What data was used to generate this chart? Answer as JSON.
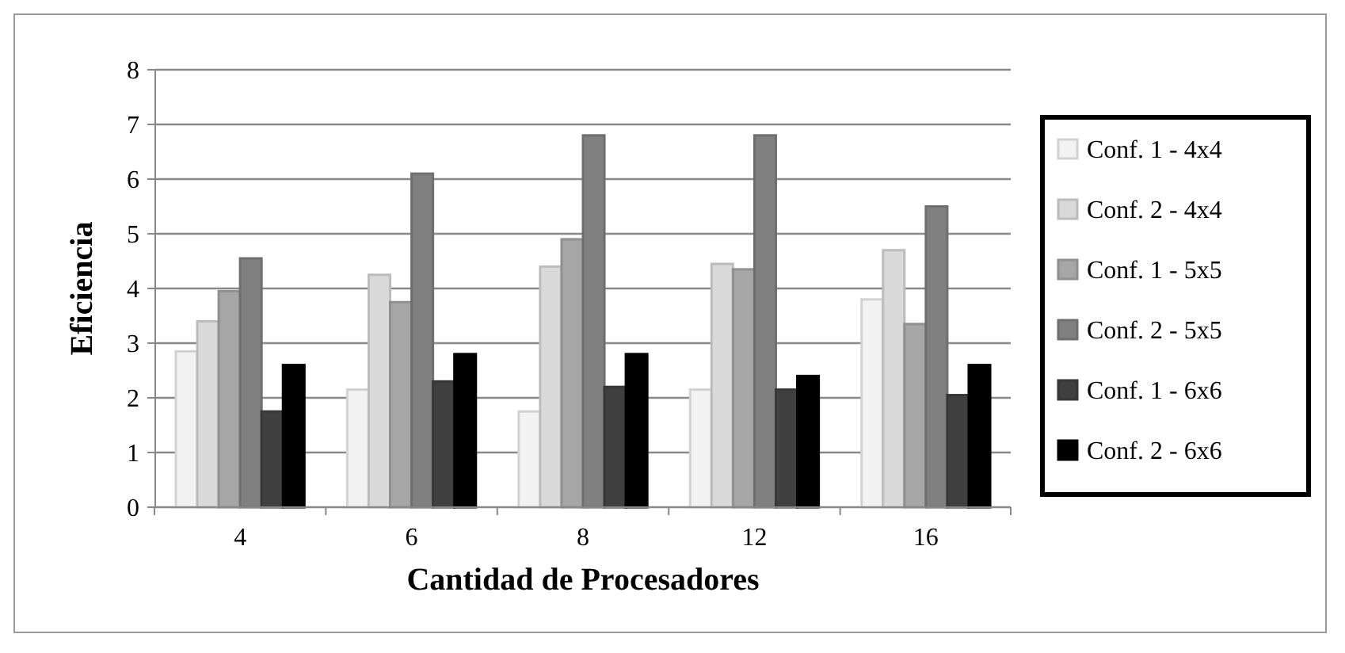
{
  "chart_data": {
    "type": "bar",
    "xlabel": "Cantidad de Procesadores",
    "ylabel": "Eficiencia",
    "categories": [
      "4",
      "6",
      "8",
      "12",
      "16"
    ],
    "series": [
      {
        "name": "Conf. 1 - 4x4",
        "color": "#f2f2f2",
        "values": [
          2.85,
          2.15,
          1.75,
          2.15,
          3.8
        ]
      },
      {
        "name": "Conf. 2 - 4x4",
        "color": "#d9d9d9",
        "values": [
          3.4,
          4.25,
          4.4,
          4.45,
          4.7
        ]
      },
      {
        "name": "Conf. 1 - 5x5",
        "color": "#a6a6a6",
        "values": [
          3.95,
          3.75,
          4.9,
          4.35,
          3.35
        ]
      },
      {
        "name": "Conf. 2 - 5x5",
        "color": "#808080",
        "values": [
          4.55,
          6.1,
          6.8,
          6.8,
          5.5
        ]
      },
      {
        "name": "Conf. 1 - 6x6",
        "color": "#404040",
        "values": [
          1.75,
          2.3,
          2.2,
          2.15,
          2.05
        ]
      },
      {
        "name": "Conf. 2 - 6x6",
        "color": "#000000",
        "values": [
          2.6,
          2.8,
          2.8,
          2.4,
          2.6
        ]
      }
    ],
    "ylim": [
      0,
      8
    ],
    "yticks": [
      0,
      1,
      2,
      3,
      4,
      5,
      6,
      7,
      8
    ],
    "grid": "y",
    "legend": "right"
  }
}
